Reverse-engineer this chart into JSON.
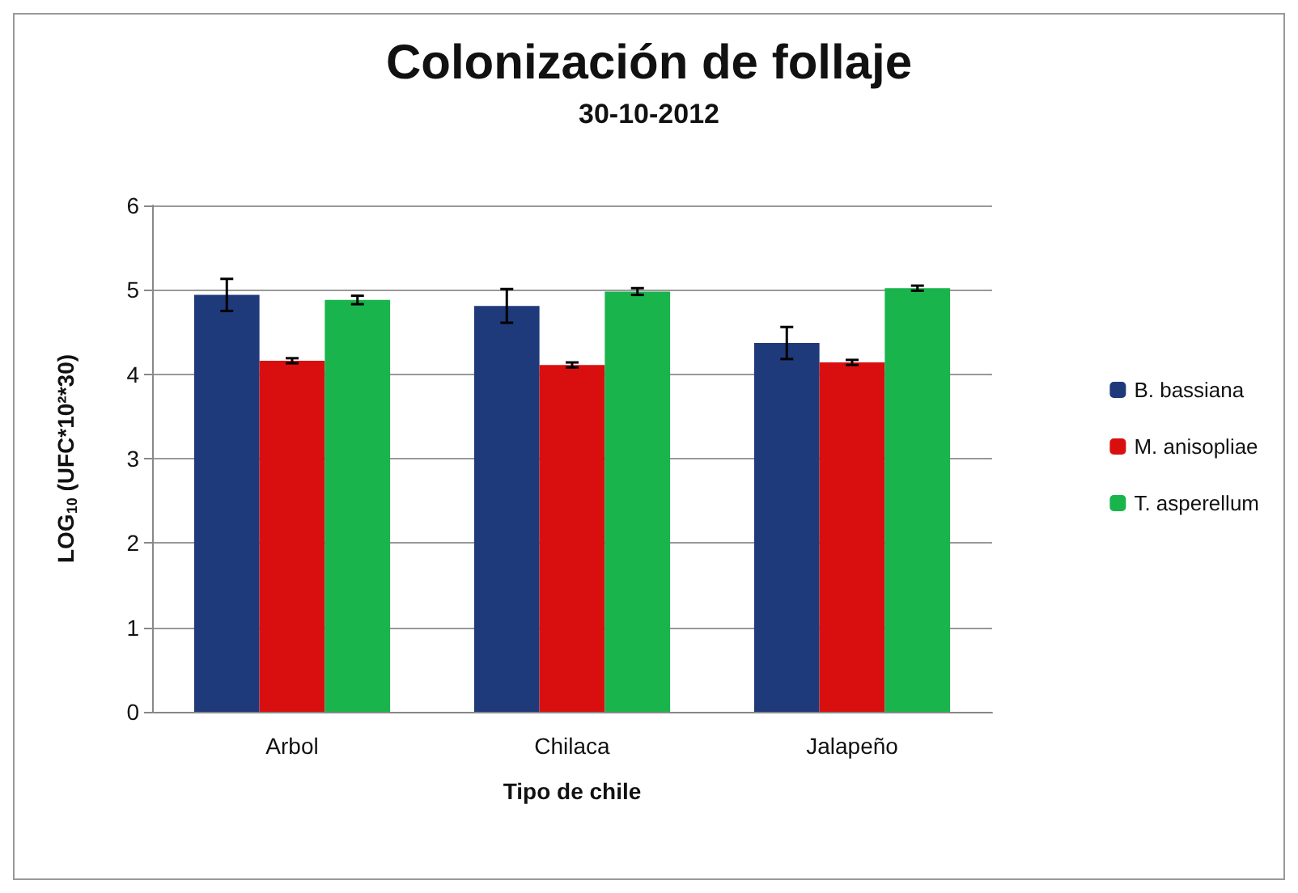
{
  "chart_data": {
    "type": "bar",
    "title": "Colonización de follaje",
    "subtitle": "30-10-2012",
    "xlabel": "Tipo de chile",
    "ylabel": "LOG$_{10}$ (UFC*10²*30)",
    "categories": [
      "Arbol",
      "Chilaca",
      "Jalapeño"
    ],
    "series": [
      {
        "name": "B. bassiana",
        "color": "#1f3a7a",
        "values": [
          4.94,
          4.81,
          4.37
        ],
        "errors": [
          0.19,
          0.2,
          0.19
        ]
      },
      {
        "name": "M. anisopliae",
        "color": "#d90f0f",
        "values": [
          4.16,
          4.11,
          4.14
        ],
        "errors": [
          0.03,
          0.03,
          0.03
        ]
      },
      {
        "name": "T. asperellum",
        "color": "#19b44c",
        "values": [
          4.88,
          4.98,
          5.02
        ],
        "errors": [
          0.05,
          0.04,
          0.03
        ]
      }
    ],
    "ylim": [
      0,
      6
    ],
    "yticks": [
      0,
      1,
      2,
      3,
      4,
      5,
      6
    ],
    "grid": "y",
    "legend": "right"
  }
}
